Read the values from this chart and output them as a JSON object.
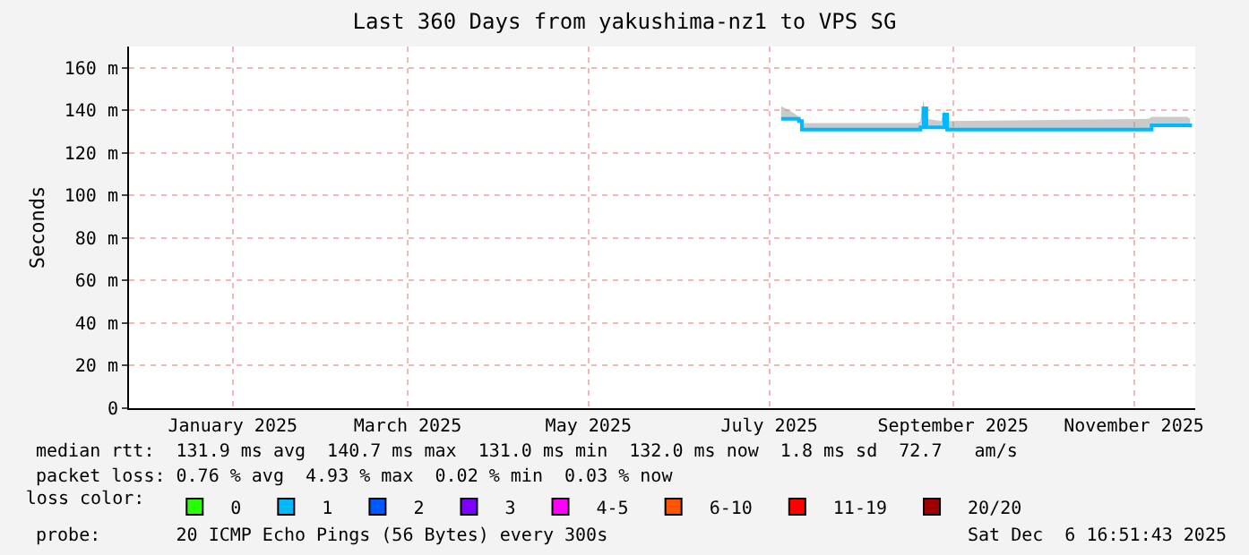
{
  "chart_data": {
    "type": "line",
    "title": "Last 360 Days from yakushima-nz1 to VPS SG",
    "ylabel": "Seconds",
    "xlim": [
      "2024-12-12",
      "2025-12-06T17:00"
    ],
    "xticks": [
      {
        "value": "2025-01-16",
        "label": "January 2025"
      },
      {
        "value": "2025-03-16",
        "label": "March 2025"
      },
      {
        "value": "2025-05-16",
        "label": "May 2025"
      },
      {
        "value": "2025-07-16",
        "label": "July 2025"
      },
      {
        "value": "2025-09-16",
        "label": "September 2025"
      },
      {
        "value": "2025-11-16",
        "label": "November 2025"
      }
    ],
    "ylim": [
      0,
      170
    ],
    "yticks": [
      {
        "value": 0,
        "label": "0"
      },
      {
        "value": 20,
        "label": "20 m"
      },
      {
        "value": 40,
        "label": "40 m"
      },
      {
        "value": 60,
        "label": "60 m"
      },
      {
        "value": 80,
        "label": "80 m"
      },
      {
        "value": 100,
        "label": "100 m"
      },
      {
        "value": 120,
        "label": "120 m"
      },
      {
        "value": 140,
        "label": "140 m"
      },
      {
        "value": 160,
        "label": "160 m"
      }
    ],
    "grid": true,
    "legend": "bottom",
    "legend_title": "loss color:",
    "series": [
      {
        "name": "0",
        "color": "#26ff00"
      },
      {
        "name": "1",
        "color": "#00b8ff",
        "x": [
          "2025-07-20",
          "2025-07-24",
          "2025-07-26",
          "2025-07-27",
          "2025-09-04",
          "2025-09-05",
          "2025-09-06",
          "2025-09-07",
          "2025-09-12",
          "2025-09-13",
          "2025-09-14",
          "2025-11-21",
          "2025-11-22",
          "2025-12-04",
          "2025-12-05"
        ],
        "values": [
          136,
          136,
          135,
          131,
          131,
          132,
          141,
          132,
          132,
          138,
          131,
          131,
          133,
          133,
          132
        ],
        "lower": [
          136,
          136,
          135,
          131,
          131,
          132,
          141,
          132,
          132,
          138,
          131,
          131,
          133,
          133,
          132
        ],
        "upper": [
          142,
          139,
          137,
          134,
          134,
          135,
          145,
          136,
          135,
          140,
          135,
          136,
          137,
          137,
          136
        ]
      },
      {
        "name": "2",
        "color": "#0059ff"
      },
      {
        "name": "3",
        "color": "#7e00ff"
      },
      {
        "name": "4-5",
        "color": "#ff00ff"
      },
      {
        "name": "6-10",
        "color": "#ff5500"
      },
      {
        "name": "11-19",
        "color": "#ff0000"
      },
      {
        "name": "20/20",
        "color": "#a10000"
      }
    ],
    "annotations": [
      "median rtt:  131.9 ms avg  140.7 ms max  131.0 ms min  132.0 ms now  1.8 ms sd  72.7   am/s",
      "packet loss: 0.76 % avg  4.93 % max  0.02 % min  0.03 % now",
      "probe:       20 ICMP Echo Pings (56 Bytes) every 300s",
      "Sat Dec  6 16:51:43 2025"
    ]
  }
}
